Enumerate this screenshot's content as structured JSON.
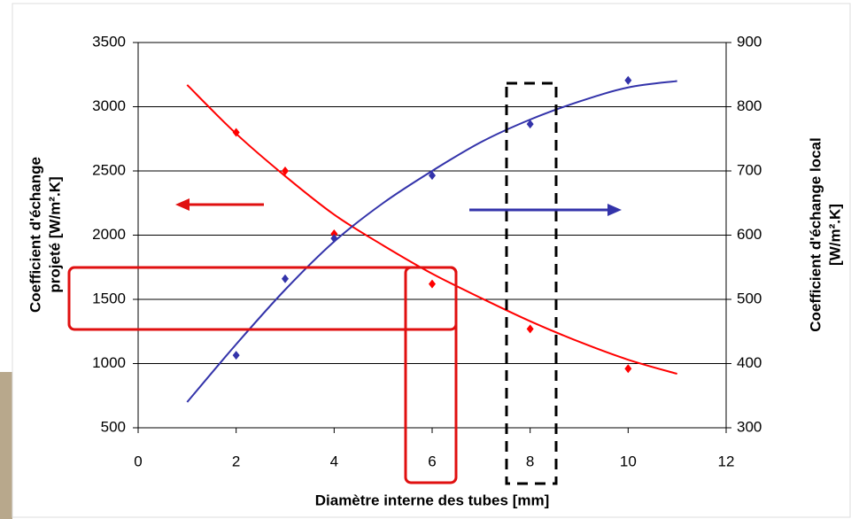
{
  "chart_data": {
    "type": "scatter",
    "x_label": "Diamètre interne des tubes [mm]",
    "y_label": [
      "Coefficient d'échange",
      "projeté [W/m².K]"
    ],
    "y2_label": [
      "Coefficient d'échange local",
      "[W/m².K]"
    ],
    "xlim": [
      0,
      12
    ],
    "xticks": [
      0,
      2,
      4,
      6,
      8,
      10,
      12
    ],
    "ylim": [
      500,
      3500
    ],
    "yticks": [
      500,
      1000,
      1500,
      2000,
      2500,
      3000,
      3500
    ],
    "y2lim": [
      300,
      900
    ],
    "y2ticks": [
      300,
      400,
      500,
      600,
      700,
      800,
      900
    ],
    "grid": true,
    "series": [
      {
        "color": "#ff0000",
        "mode": "markers",
        "x": [
          2,
          3,
          4,
          6,
          8,
          10
        ],
        "values": [
          2800,
          2500,
          2010,
          1620,
          1270,
          960
        ]
      },
      {
        "color": "#ff0000",
        "mode": "line",
        "x": [
          1,
          2,
          3,
          4,
          5,
          6,
          7,
          8,
          9,
          10,
          11
        ],
        "values": [
          3170,
          2790,
          2460,
          2160,
          1920,
          1700,
          1510,
          1330,
          1170,
          1030,
          920
        ]
      },
      {
        "color": "#3333aa",
        "mode": "markers",
        "axis": "y2",
        "x": [
          2,
          3,
          4,
          6,
          8,
          10
        ],
        "values": [
          413,
          532,
          595,
          693,
          773,
          841
        ]
      },
      {
        "color": "#3333aa",
        "mode": "line",
        "axis": "y2",
        "x": [
          1,
          2,
          3,
          4,
          5,
          6,
          7,
          8,
          9,
          10,
          11
        ],
        "values": [
          340,
          430,
          515,
          590,
          650,
          700,
          745,
          780,
          808,
          830,
          840
        ]
      }
    ]
  }
}
